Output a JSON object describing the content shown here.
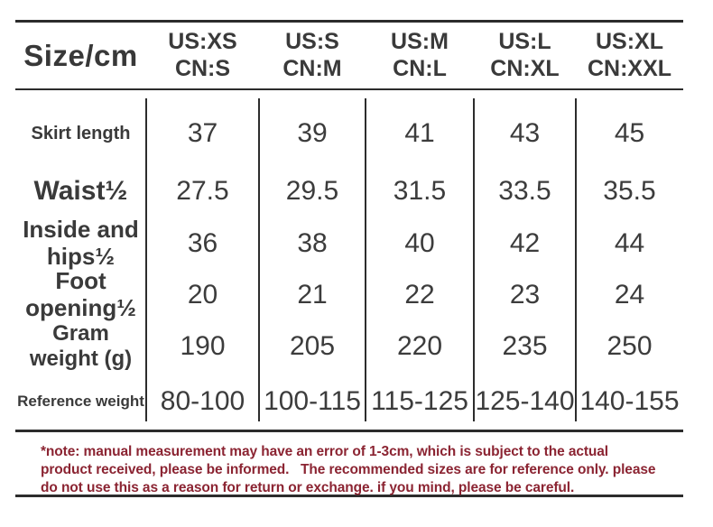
{
  "chart_data": {
    "type": "table",
    "corner_label": "Size/cm",
    "size_columns": [
      {
        "us": "US:XS",
        "cn": "CN:S"
      },
      {
        "us": "US:S",
        "cn": "CN:M"
      },
      {
        "us": "US:M",
        "cn": "CN:L"
      },
      {
        "us": "US:L",
        "cn": "CN:XL"
      },
      {
        "us": "US:XL",
        "cn": "CN:XXL"
      }
    ],
    "rows": [
      {
        "label_lines": [
          "Skirt length"
        ],
        "values": [
          "37",
          "39",
          "41",
          "43",
          "45"
        ]
      },
      {
        "label_lines": [
          "Waist½"
        ],
        "values": [
          "27.5",
          "29.5",
          "31.5",
          "33.5",
          "35.5"
        ]
      },
      {
        "label_lines": [
          "Inside and",
          "hips½"
        ],
        "values": [
          "36",
          "38",
          "40",
          "42",
          "44"
        ]
      },
      {
        "label_lines": [
          "Foot",
          "opening½"
        ],
        "values": [
          "20",
          "21",
          "22",
          "23",
          "24"
        ]
      },
      {
        "label_lines": [
          "Gram",
          "weight (g)"
        ],
        "values": [
          "190",
          "205",
          "220",
          "235",
          "250"
        ]
      },
      {
        "label_lines": [
          "Reference weight"
        ],
        "values": [
          "80-100",
          "100-115",
          "115-125",
          "125-140",
          "140-155"
        ]
      }
    ]
  },
  "note": {
    "lines": [
      "*note: manual measurement may have an error of 1-3cm, which is subject to the actual",
      "product received, please be informed.   The recommended sizes are for reference only. please",
      "do not use this as a reason for return or exchange. if you mind, please be careful."
    ]
  },
  "colors": {
    "text": "#3a3a3a",
    "rule_line": "#2c2c2c",
    "note_red": "#8b2432",
    "background": "#ffffff"
  }
}
